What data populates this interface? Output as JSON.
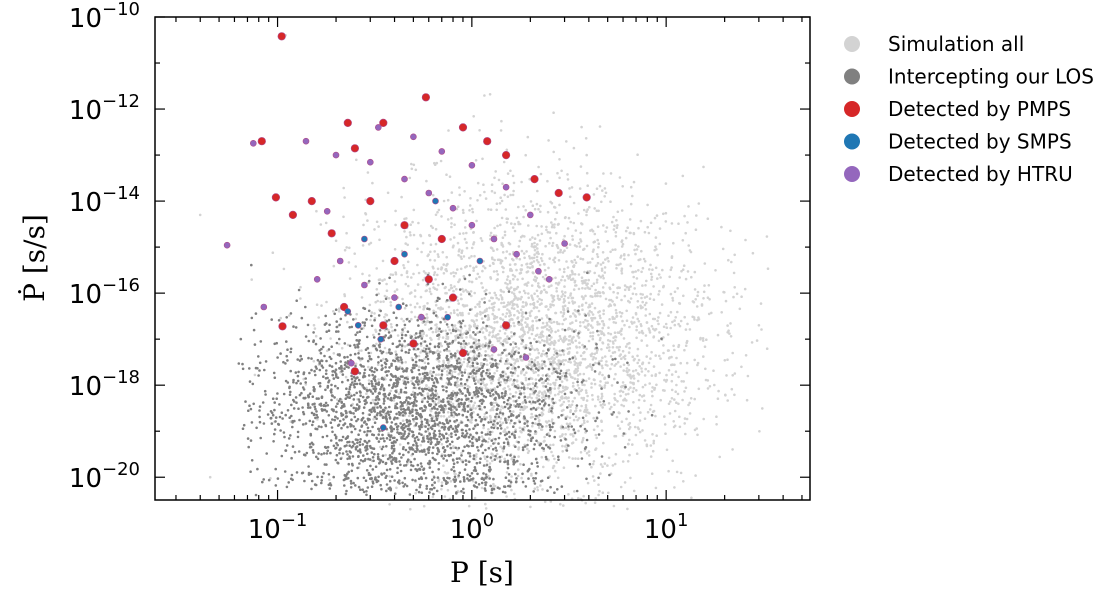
{
  "chart_data": {
    "type": "scatter",
    "title": "",
    "xlabel": "P [s]",
    "ylabel": "Ṗ [s/s]",
    "x_scale": "log",
    "y_scale": "log",
    "xlim": [
      0.0234,
      55
    ],
    "ylim": [
      3.2e-21,
      1e-10
    ],
    "x_ticks": [
      {
        "value": 0.1,
        "base": "10",
        "exp": "−1"
      },
      {
        "value": 1,
        "base": "10",
        "exp": "0"
      },
      {
        "value": 10,
        "base": "10",
        "exp": "1"
      }
    ],
    "y_ticks": [
      {
        "value": 1e-10,
        "base": "10",
        "exp": "−10"
      },
      {
        "value": 1e-12,
        "base": "10",
        "exp": "−12"
      },
      {
        "value": 1e-14,
        "base": "10",
        "exp": "−14"
      },
      {
        "value": 1e-16,
        "base": "10",
        "exp": "−16"
      },
      {
        "value": 1e-18,
        "base": "10",
        "exp": "−18"
      },
      {
        "value": 1e-20,
        "base": "10",
        "exp": "−20"
      }
    ],
    "grid": false,
    "legend_position": "outside-right",
    "series": [
      {
        "name": "Simulation all",
        "color": "#d3d3d3",
        "marker_size": "small",
        "approximate_density": {
          "logP_center": 0.3,
          "logP_spread": 0.45,
          "logPdot_center": -17.0,
          "logPdot_spread": 1.6,
          "logP_range": [
            -1.45,
            1.55
          ],
          "logPdot_range": [
            -20.7,
            -11.5
          ]
        },
        "points": [
          [
            0.11,
            4e-11
          ],
          [
            3.9,
            1e-13
          ],
          [
            5.2,
            4e-14
          ],
          [
            12.0,
            3e-16
          ],
          [
            15.0,
            1e-17
          ],
          [
            22.0,
            5e-18
          ],
          [
            30.0,
            2e-17
          ],
          [
            0.04,
            5e-15
          ],
          [
            0.045,
            1e-20
          ]
        ]
      },
      {
        "name": "Intercepting our LOS",
        "color": "#808080",
        "marker_size": "small",
        "approximate_density": {
          "logP_center": -0.3,
          "logP_spread": 0.4,
          "logPdot_center": -18.5,
          "logPdot_spread": 1.0,
          "logP_range": [
            -1.2,
            1.0
          ],
          "logPdot_range": [
            -20.5,
            -12.5
          ]
        },
        "points": [
          [
            0.3,
            1e-19
          ],
          [
            0.5,
            5e-20
          ],
          [
            1.0,
            2e-19
          ],
          [
            0.2,
            3e-18
          ],
          [
            2.0,
            1e-19
          ]
        ]
      },
      {
        "name": "Detected by PMPS",
        "color": "#d62728",
        "marker_size": "large",
        "points": [
          [
            0.105,
            3.8e-11
          ],
          [
            0.083,
            2e-13
          ],
          [
            0.098,
            1.2e-14
          ],
          [
            0.106,
            1.9e-17
          ],
          [
            0.23,
            5e-13
          ],
          [
            0.35,
            5e-13
          ],
          [
            0.58,
            1.8e-12
          ],
          [
            0.9,
            4e-13
          ],
          [
            1.2,
            2e-13
          ],
          [
            1.5,
            1e-13
          ],
          [
            2.1,
            3e-14
          ],
          [
            2.8,
            1.5e-14
          ],
          [
            3.9,
            1.2e-14
          ],
          [
            0.3,
            1e-14
          ],
          [
            0.45,
            3e-15
          ],
          [
            0.7,
            1.5e-15
          ],
          [
            0.4,
            5e-16
          ],
          [
            0.6,
            2e-16
          ],
          [
            0.8,
            8e-17
          ],
          [
            1.5,
            2e-17
          ],
          [
            0.22,
            5e-17
          ],
          [
            0.35,
            2e-17
          ],
          [
            0.5,
            8e-18
          ],
          [
            0.9,
            5e-18
          ],
          [
            0.25,
            2e-18
          ],
          [
            0.15,
            1e-14
          ],
          [
            0.12,
            5e-15
          ],
          [
            0.19,
            2e-15
          ],
          [
            0.25,
            1.4e-13
          ]
        ]
      },
      {
        "name": "Detected by SMPS",
        "color": "#1f77b4",
        "marker_size": "medium",
        "points": [
          [
            0.35,
            1.2e-19
          ],
          [
            0.23,
            4e-17
          ],
          [
            0.26,
            2e-17
          ],
          [
            0.34,
            1e-17
          ],
          [
            0.42,
            5e-17
          ],
          [
            0.75,
            3e-17
          ],
          [
            0.28,
            1.5e-15
          ],
          [
            0.45,
            7e-16
          ],
          [
            1.1,
            5e-16
          ],
          [
            0.65,
            1e-14
          ]
        ]
      },
      {
        "name": "Detected by HTRU",
        "color": "#9467bd",
        "marker_size": "medium",
        "points": [
          [
            0.055,
            1.1e-15
          ],
          [
            0.075,
            1.8e-13
          ],
          [
            0.085,
            5e-17
          ],
          [
            0.14,
            2e-13
          ],
          [
            0.2,
            1e-13
          ],
          [
            0.3,
            7e-14
          ],
          [
            0.45,
            3e-14
          ],
          [
            0.6,
            1.5e-14
          ],
          [
            0.8,
            7e-15
          ],
          [
            1.0,
            3e-15
          ],
          [
            1.3,
            1.5e-15
          ],
          [
            1.7,
            7e-16
          ],
          [
            2.2,
            3e-16
          ],
          [
            2.5,
            2e-16
          ],
          [
            3.0,
            1.2e-15
          ],
          [
            2.0,
            5e-15
          ],
          [
            1.5,
            2e-14
          ],
          [
            1.0,
            6e-14
          ],
          [
            0.7,
            1.2e-13
          ],
          [
            0.5,
            2.5e-13
          ],
          [
            0.33,
            4e-13
          ],
          [
            0.18,
            6e-15
          ],
          [
            0.16,
            2e-16
          ],
          [
            0.21,
            5e-16
          ],
          [
            0.28,
            1.5e-16
          ],
          [
            0.4,
            8e-17
          ],
          [
            0.55,
            3e-17
          ],
          [
            1.3,
            6e-18
          ],
          [
            0.24,
            3e-18
          ],
          [
            1.9,
            4e-18
          ]
        ]
      }
    ]
  }
}
